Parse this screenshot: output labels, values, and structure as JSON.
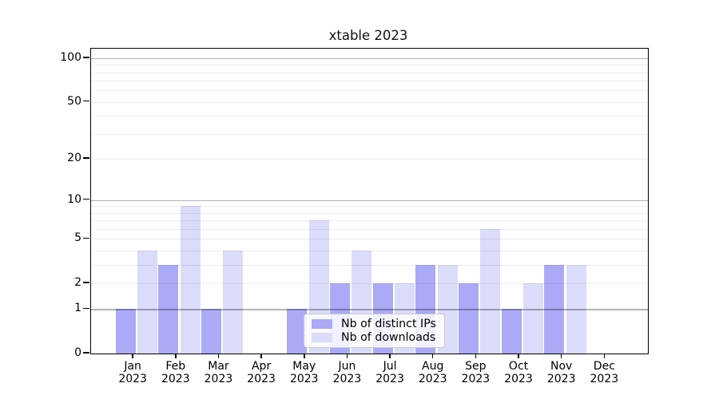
{
  "chart_data": {
    "type": "bar",
    "title": "xtable 2023",
    "categories": [
      "Jan",
      "Feb",
      "Mar",
      "Apr",
      "May",
      "Jun",
      "Jul",
      "Aug",
      "Sep",
      "Oct",
      "Nov",
      "Dec"
    ],
    "category_year": "2023",
    "series": [
      {
        "name": "Nb of distinct IPs",
        "color": "#aaaaf7",
        "values": [
          1,
          3,
          1,
          0,
          1,
          2,
          2,
          3,
          2,
          1,
          3,
          0
        ]
      },
      {
        "name": "Nb of downloads",
        "color": "#dbdbfa",
        "values": [
          4,
          9,
          4,
          0,
          7,
          4,
          2,
          3,
          6,
          2,
          3,
          0
        ]
      }
    ],
    "yscale": "log1p",
    "ylim": [
      0,
      116
    ],
    "yticks": [
      0,
      1,
      2,
      5,
      10,
      20,
      50,
      100
    ],
    "grid": {
      "major_values": [
        1,
        10,
        100
      ],
      "minor_values": [
        2,
        3,
        4,
        5,
        6,
        7,
        8,
        9,
        20,
        30,
        40,
        50,
        60,
        70,
        80,
        90
      ],
      "major_color": "rgba(0,0,0,0.30)",
      "minor_color": "rgba(0,0,0,0.075)"
    },
    "legend_position": "lower center",
    "axis_color": "#000000",
    "background_color": "#ffffff"
  }
}
